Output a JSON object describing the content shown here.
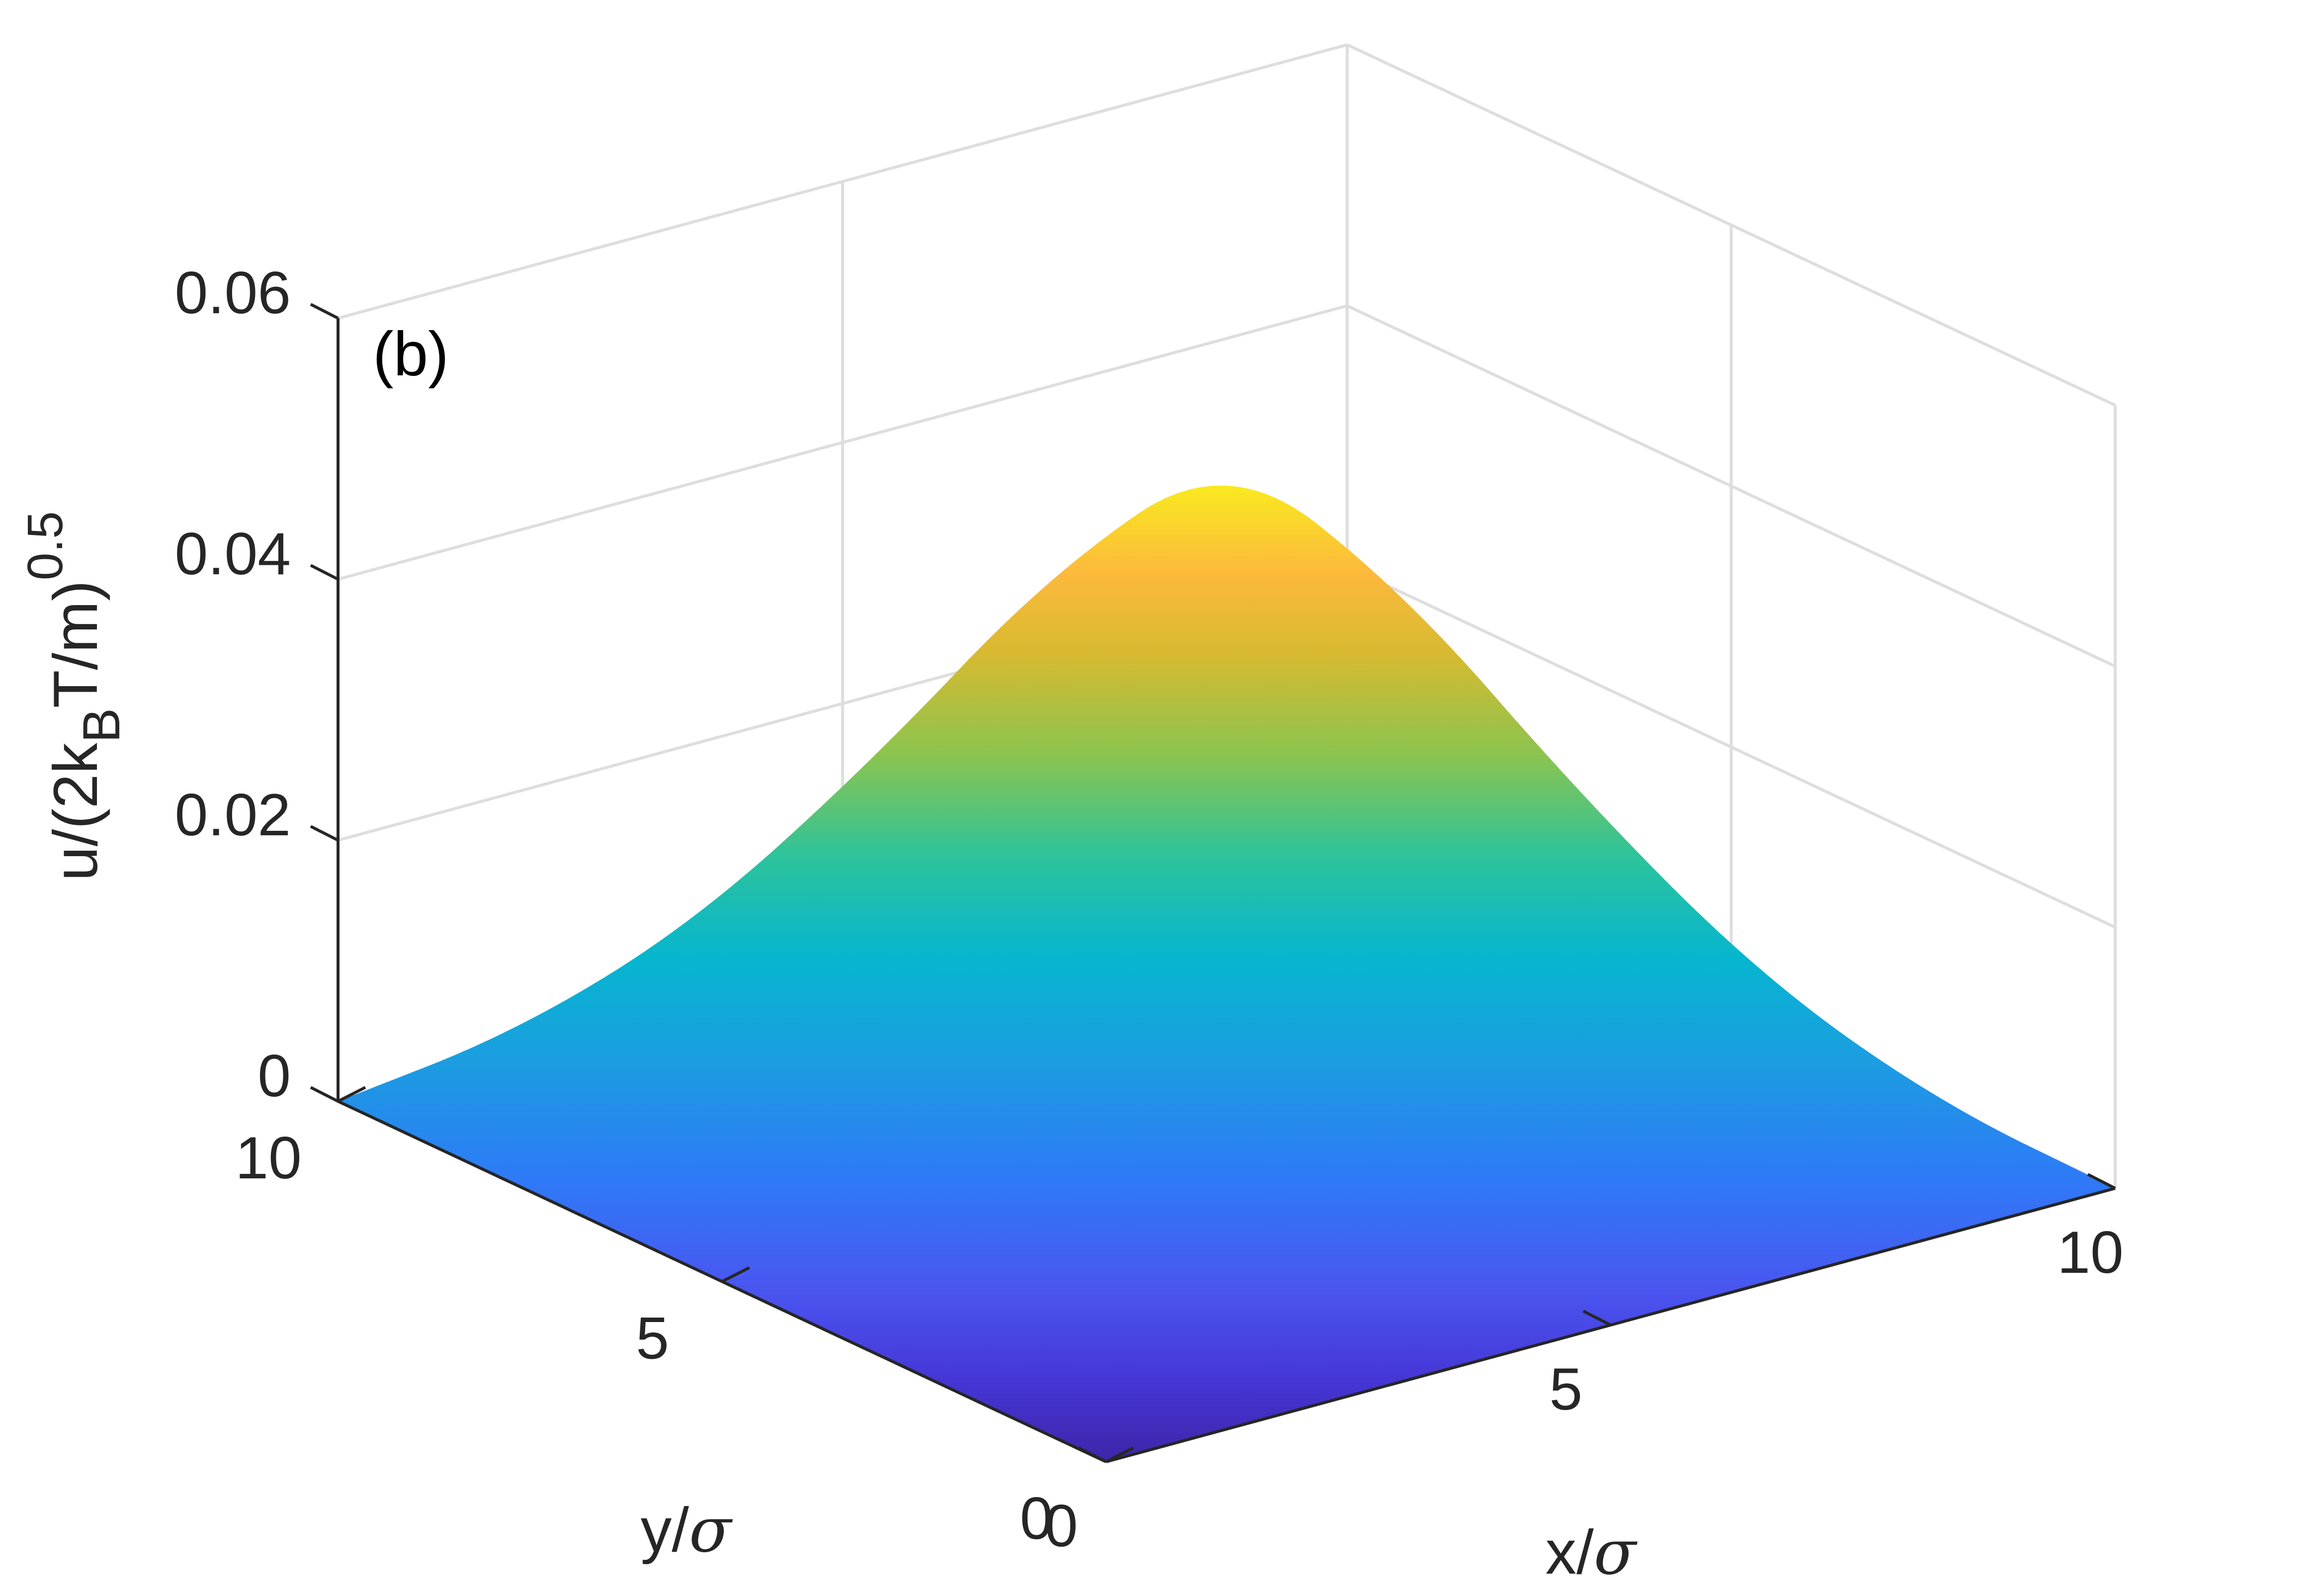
{
  "chart_data": {
    "type": "surface",
    "panel_label": "(b)",
    "xlabel_main": "x/",
    "xlabel_symbol": "σ",
    "ylabel_main": "y/",
    "ylabel_symbol": "σ",
    "zlabel": {
      "base": "u/(2k",
      "sub": "B",
      "mid": "T/m)",
      "sup": "0.5"
    },
    "xlim": [
      0,
      10
    ],
    "ylim": [
      0,
      10
    ],
    "zlim": [
      0,
      0.06
    ],
    "xticks": [
      {
        "value": 0,
        "label": "0"
      },
      {
        "value": 5,
        "label": "5"
      },
      {
        "value": 10,
        "label": "10"
      }
    ],
    "yticks": [
      {
        "value": 0,
        "label": "0"
      },
      {
        "value": 5,
        "label": "5"
      },
      {
        "value": 10,
        "label": "10"
      }
    ],
    "zticks": [
      {
        "value": 0,
        "label": "0"
      },
      {
        "value": 0.02,
        "label": "0.02"
      },
      {
        "value": 0.04,
        "label": "0.04"
      },
      {
        "value": 0.06,
        "label": "0.06"
      }
    ],
    "grid": true,
    "colormap": "parula",
    "peak_value": 0.053,
    "peak_location": {
      "x": 5,
      "y": 5
    },
    "surface_profile": {
      "description_values": "u(x,y) profile along x through y=5",
      "x": [
        0,
        1,
        2,
        3,
        4,
        5,
        6,
        7,
        8,
        9,
        10
      ],
      "u": [
        0.0,
        0.006,
        0.015,
        0.028,
        0.043,
        0.053,
        0.043,
        0.028,
        0.015,
        0.006,
        0.0
      ]
    }
  }
}
